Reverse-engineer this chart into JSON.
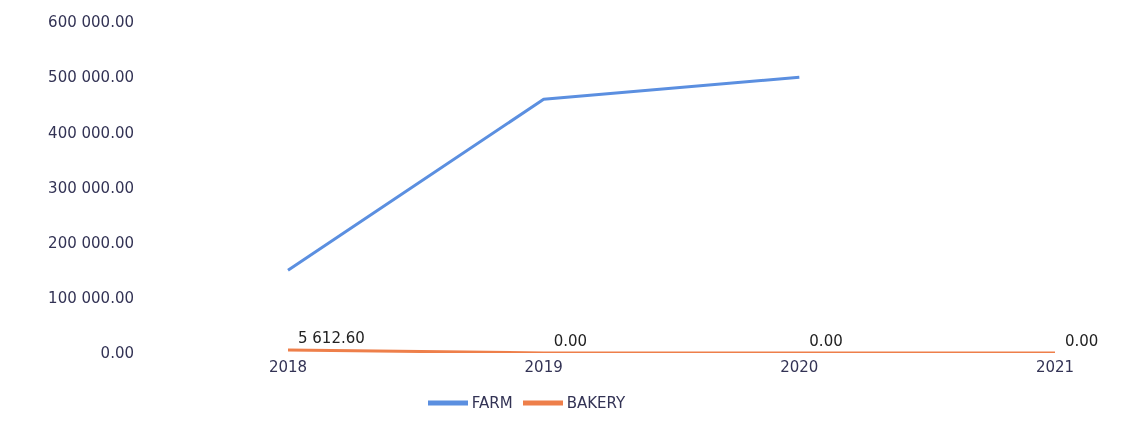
{
  "chart_data": {
    "type": "line",
    "categories": [
      "2018",
      "2019",
      "2020",
      "2021"
    ],
    "series": [
      {
        "name": "FARM",
        "color": "#5b8fe0",
        "values": [
          150000,
          460000,
          500000,
          null
        ]
      },
      {
        "name": "BAKERY",
        "color": "#ee7f4a",
        "values": [
          5612.6,
          0,
          0,
          0
        ],
        "value_labels": [
          "5 612.60",
          "0.00",
          "0.00",
          "0.00"
        ]
      }
    ],
    "ylim": [
      0,
      600000
    ],
    "yticks": [
      {
        "value": 0,
        "label": "0.00"
      },
      {
        "value": 100000,
        "label": "100 000.00"
      },
      {
        "value": 200000,
        "label": "200 000.00"
      },
      {
        "value": 300000,
        "label": "300 000.00"
      },
      {
        "value": 400000,
        "label": "400 000.00"
      },
      {
        "value": 500000,
        "label": "500 000.00"
      },
      {
        "value": 600000,
        "label": "600 000.00"
      }
    ],
    "grid": false,
    "legend": "bottom",
    "marker": "none",
    "line_style": "solid"
  }
}
